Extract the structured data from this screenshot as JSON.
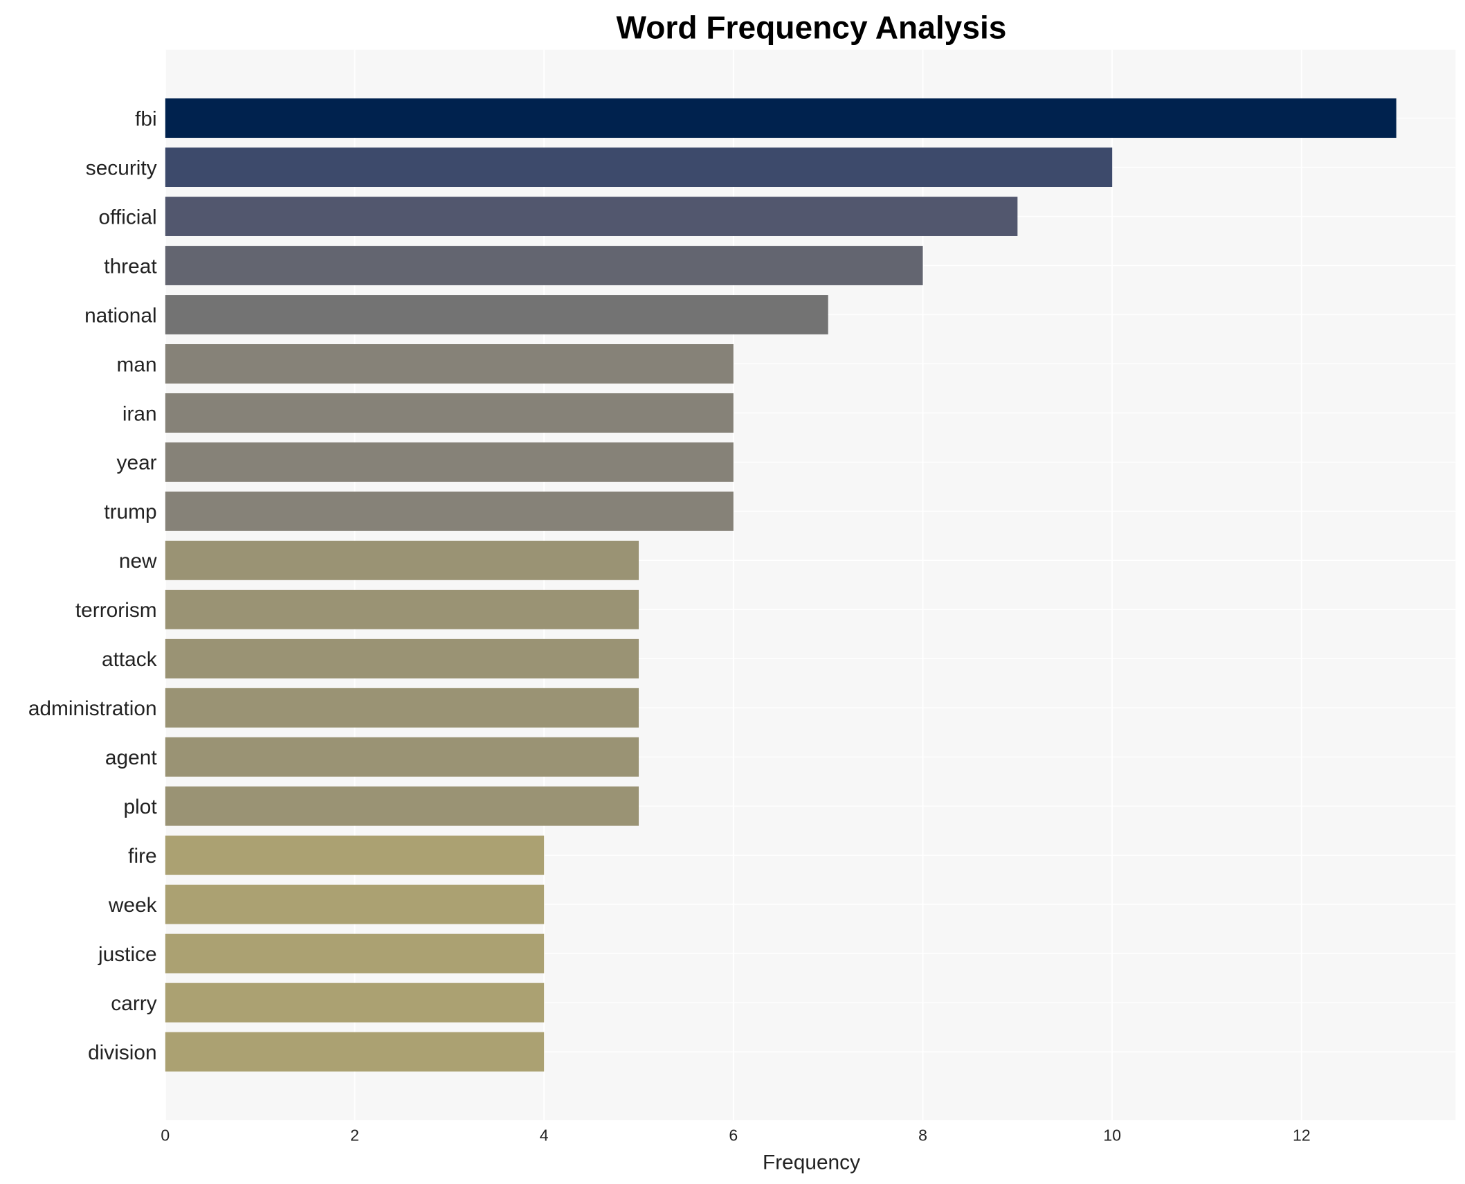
{
  "chart_data": {
    "type": "bar",
    "orientation": "horizontal",
    "title": "Word Frequency Analysis",
    "xlabel": "Frequency",
    "ylabel": "",
    "xlim": [
      0,
      13.6
    ],
    "x_ticks": [
      0,
      2,
      4,
      6,
      8,
      10,
      12
    ],
    "grid": true,
    "categories": [
      "fbi",
      "security",
      "official",
      "threat",
      "national",
      "man",
      "iran",
      "year",
      "trump",
      "new",
      "terrorism",
      "attack",
      "administration",
      "agent",
      "plot",
      "fire",
      "week",
      "justice",
      "carry",
      "division"
    ],
    "values": [
      13,
      10,
      9,
      8,
      7,
      6,
      6,
      6,
      6,
      5,
      5,
      5,
      5,
      5,
      5,
      4,
      4,
      4,
      4,
      4
    ],
    "colors": [
      "#00224e",
      "#3d4a6b",
      "#52576e",
      "#636570",
      "#737373",
      "#868278",
      "#868278",
      "#868278",
      "#868278",
      "#9a9374",
      "#9a9374",
      "#9a9374",
      "#9a9374",
      "#9a9374",
      "#9a9374",
      "#aba172",
      "#aba172",
      "#aba172",
      "#aba172",
      "#aba172"
    ],
    "background": "#f7f7f7"
  }
}
